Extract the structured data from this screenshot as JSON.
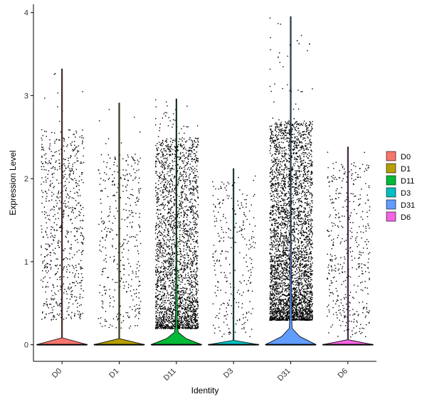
{
  "chart_data": {
    "type": "violin",
    "title": "",
    "xlabel": "Identity",
    "ylabel": "Expression Level",
    "ylim": [
      -0.2,
      4.1
    ],
    "yticks": [
      0,
      1,
      2,
      3,
      4
    ],
    "grid": false,
    "legend_position": "right",
    "categories": [
      "D0",
      "D1",
      "D11",
      "D3",
      "D31",
      "D6"
    ],
    "colors": [
      "#F8766D",
      "#B79F00",
      "#00BA38",
      "#00BFC4",
      "#619CFF",
      "#F564E3"
    ],
    "series": [
      {
        "name": "D0",
        "max": 3.32,
        "zero_fraction": 0.995,
        "nonzero_points": 700,
        "nonzero_range": [
          0.3,
          2.6
        ]
      },
      {
        "name": "D1",
        "max": 2.91,
        "zero_fraction": 0.997,
        "nonzero_points": 380,
        "nonzero_range": [
          0.2,
          2.3
        ]
      },
      {
        "name": "D11",
        "max": 2.96,
        "zero_fraction": 0.88,
        "nonzero_points": 2600,
        "nonzero_range": [
          0.2,
          2.5
        ]
      },
      {
        "name": "D3",
        "max": 2.12,
        "zero_fraction": 0.998,
        "nonzero_points": 280,
        "nonzero_range": [
          0.1,
          2.0
        ]
      },
      {
        "name": "D31",
        "max": 3.95,
        "zero_fraction": 0.85,
        "nonzero_points": 4500,
        "nonzero_range": [
          0.3,
          2.7
        ]
      },
      {
        "name": "D6",
        "max": 2.38,
        "zero_fraction": 0.997,
        "nonzero_points": 420,
        "nonzero_range": [
          0.1,
          2.2
        ]
      }
    ]
  }
}
